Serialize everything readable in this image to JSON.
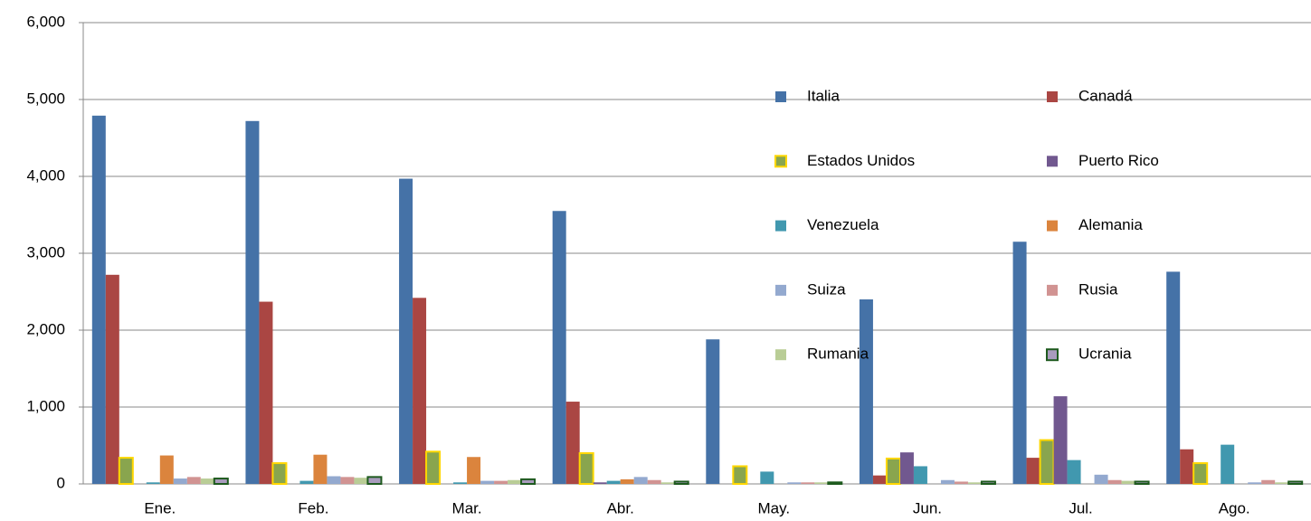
{
  "chart_data": {
    "type": "bar",
    "categories": [
      "Ene.",
      "Feb.",
      "Mar.",
      "Abr.",
      "May.",
      "Jun.",
      "Jul.",
      "Ago."
    ],
    "series": [
      {
        "name": "Italia",
        "color": "#4572a7",
        "values": [
          4790,
          4720,
          3970,
          3550,
          1880,
          2400,
          3150,
          2760
        ]
      },
      {
        "name": "Canadá",
        "color": "#aa4643",
        "values": [
          2720,
          2370,
          2420,
          1070,
          0,
          110,
          340,
          450
        ]
      },
      {
        "name": "Estados Unidos",
        "color": "#89a54e",
        "edgecolor": "#ffd700",
        "values": [
          340,
          270,
          420,
          400,
          230,
          330,
          570,
          270
        ]
      },
      {
        "name": "Puerto  Rico",
        "color": "#71588f",
        "values": [
          0,
          0,
          0,
          20,
          0,
          410,
          1140,
          0
        ]
      },
      {
        "name": "Venezuela",
        "color": "#4198af",
        "values": [
          20,
          40,
          20,
          40,
          160,
          230,
          310,
          510
        ]
      },
      {
        "name": "Alemania",
        "color": "#db843d",
        "values": [
          370,
          380,
          350,
          60,
          0,
          0,
          0,
          0
        ]
      },
      {
        "name": "Suiza",
        "color": "#93a9cf",
        "values": [
          70,
          100,
          40,
          90,
          20,
          50,
          120,
          20
        ]
      },
      {
        "name": "Rusia",
        "color": "#d19392",
        "values": [
          90,
          90,
          40,
          50,
          20,
          30,
          50,
          50
        ]
      },
      {
        "name": "Rumania",
        "color": "#b9cd96",
        "values": [
          70,
          80,
          50,
          20,
          20,
          20,
          40,
          20
        ]
      },
      {
        "name": "Ucrania",
        "color": "#a99bbd",
        "edgecolor": "#1e5a1e",
        "values": [
          70,
          90,
          60,
          30,
          20,
          30,
          30,
          30
        ]
      }
    ],
    "ylim": [
      0,
      6000
    ],
    "yticks": [
      0,
      {
        "value": 1000,
        "label": "1,000"
      },
      {
        "value": 2000,
        "label": "2,000"
      },
      {
        "value": 3000,
        "label": "3,000"
      },
      {
        "value": 4000,
        "label": "4,000"
      },
      {
        "value": 5000,
        "label": "5,000"
      },
      {
        "value": 6000,
        "label": "6,000"
      }
    ],
    "grid": true,
    "legend": "upper right"
  }
}
